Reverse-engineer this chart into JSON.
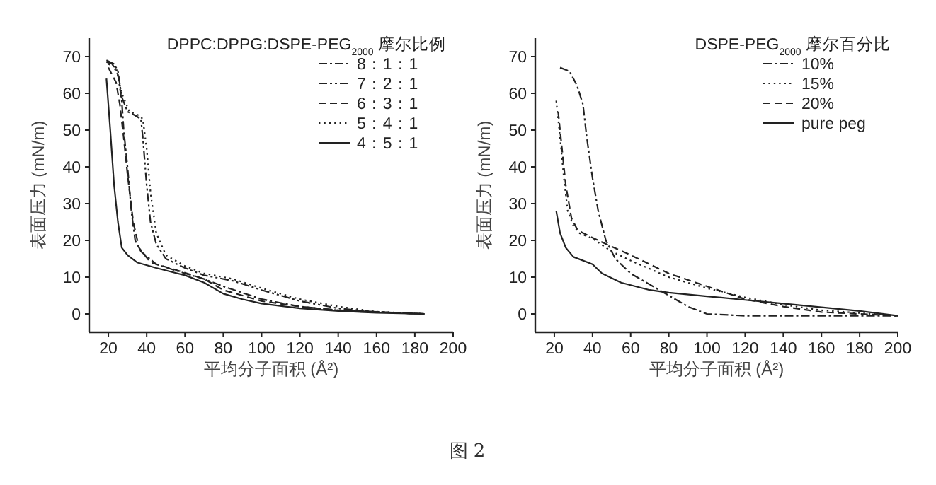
{
  "chart_data": [
    {
      "type": "line",
      "legend_title": "DPPC:DPPG:DSPE-PEG$_{2000}$ 摩尔比例",
      "xlabel": "平均分子面积 (Å²)",
      "ylabel": "表面压力 (mN/m)",
      "xlim": [
        10,
        200
      ],
      "ylim": [
        -5,
        75
      ],
      "xticks": [
        20,
        40,
        60,
        80,
        100,
        120,
        140,
        160,
        180,
        200
      ],
      "yticks": [
        0,
        10,
        20,
        30,
        40,
        50,
        60,
        70
      ],
      "grid": false,
      "legend": "top right",
      "annotations": [
        "图 2"
      ],
      "series": [
        {
          "name": "8：1：1",
          "color": "#222222",
          "line_style": "dashdot",
          "x": [
            19,
            22,
            25,
            27,
            28,
            30,
            32,
            34,
            37,
            45,
            60,
            70,
            80,
            100,
            120,
            140,
            185
          ],
          "values": [
            68.5,
            68,
            65,
            58,
            50,
            40,
            28,
            20,
            17,
            13.5,
            11,
            9.5,
            7.5,
            4,
            2,
            1,
            0
          ]
        },
        {
          "name": "7：2：1",
          "color": "#222222",
          "line_style": "dashdotdot",
          "x": [
            19,
            23,
            25,
            27,
            30,
            34,
            37,
            38,
            40,
            42,
            45,
            50,
            60,
            70,
            85,
            100,
            120,
            140,
            160,
            185
          ],
          "values": [
            69,
            68,
            66,
            59,
            55,
            54,
            53,
            48,
            35,
            25,
            19,
            15,
            12.5,
            10.5,
            9,
            6.5,
            3.5,
            1.5,
            0.5,
            0
          ]
        },
        {
          "name": "6：3：1",
          "color": "#222222",
          "line_style": "dashed",
          "x": [
            20,
            24,
            26,
            28,
            30,
            33,
            36,
            42,
            55,
            70,
            80,
            100,
            120,
            140,
            185
          ],
          "values": [
            67,
            63,
            57,
            48,
            38,
            25,
            18,
            14,
            12,
            9.5,
            6.5,
            3.5,
            2,
            1,
            0
          ]
        },
        {
          "name": "5：4：1",
          "color": "#222222",
          "line_style": "dotted",
          "x": [
            20,
            24,
            27,
            31,
            36,
            38,
            40,
            42,
            45,
            50,
            60,
            70,
            85,
            100,
            120,
            140,
            160,
            185
          ],
          "values": [
            68,
            67,
            60,
            55,
            54,
            53,
            45,
            33,
            22,
            16,
            13,
            11,
            9.5,
            7,
            4,
            2,
            0.6,
            0
          ]
        },
        {
          "name": "4：5：1",
          "color": "#222222",
          "line_style": "solid",
          "x": [
            19,
            21,
            23,
            25,
            27,
            30,
            35,
            45,
            60,
            70,
            80,
            90,
            100,
            120,
            140,
            160,
            185
          ],
          "values": [
            64,
            50,
            35,
            25,
            18,
            16,
            14,
            12.5,
            10.5,
            8.5,
            5.5,
            4,
            2.8,
            1.5,
            0.8,
            0.3,
            0
          ]
        }
      ]
    },
    {
      "type": "line",
      "legend_title": "DSPE-PEG$_{2000}$ 摩尔百分比",
      "xlabel": "平均分子面积 (Å²)",
      "ylabel": "表面压力 (mN/m)",
      "xlim": [
        10,
        200
      ],
      "ylim": [
        -5,
        75
      ],
      "xticks": [
        20,
        40,
        60,
        80,
        100,
        120,
        140,
        160,
        180,
        200
      ],
      "yticks": [
        0,
        10,
        20,
        30,
        40,
        50,
        60,
        70
      ],
      "grid": false,
      "legend": "top right",
      "series": [
        {
          "name": "10%",
          "color": "#222222",
          "line_style": "dashdot",
          "x": [
            23,
            28,
            32,
            35,
            37,
            40,
            43,
            47,
            52,
            60,
            70,
            80,
            90,
            100,
            120,
            160,
            200
          ],
          "values": [
            67,
            66,
            62,
            57,
            48,
            37,
            28,
            20,
            15,
            11,
            8,
            5,
            2,
            0,
            -0.5,
            -0.5,
            -0.5
          ]
        },
        {
          "name": "15%",
          "color": "#222222",
          "line_style": "dotted",
          "x": [
            21,
            23,
            25,
            27,
            30,
            33,
            40,
            50,
            60,
            80,
            100,
            120,
            140,
            160,
            200
          ],
          "values": [
            58,
            48,
            37,
            28,
            24,
            22,
            20.5,
            17,
            14.5,
            10,
            7,
            4.5,
            2.5,
            1,
            -0.5
          ]
        },
        {
          "name": "20%",
          "color": "#222222",
          "line_style": "dashed",
          "x": [
            22,
            24,
            26,
            29,
            32,
            35,
            45,
            60,
            80,
            100,
            120,
            140,
            160,
            200
          ],
          "values": [
            55,
            45,
            35,
            26,
            23,
            22,
            19.5,
            16,
            11,
            7.5,
            4,
            2,
            0.5,
            -0.5
          ]
        },
        {
          "name": "pure peg",
          "color": "#222222",
          "line_style": "solid",
          "x": [
            21,
            23,
            26,
            30,
            40,
            45,
            55,
            70,
            80,
            100,
            120,
            140,
            160,
            180,
            200
          ],
          "values": [
            28,
            22,
            18,
            15.5,
            13.5,
            11,
            8.5,
            6.5,
            5.8,
            4.8,
            3.8,
            2.8,
            1.8,
            0.8,
            -0.5
          ]
        }
      ]
    }
  ]
}
